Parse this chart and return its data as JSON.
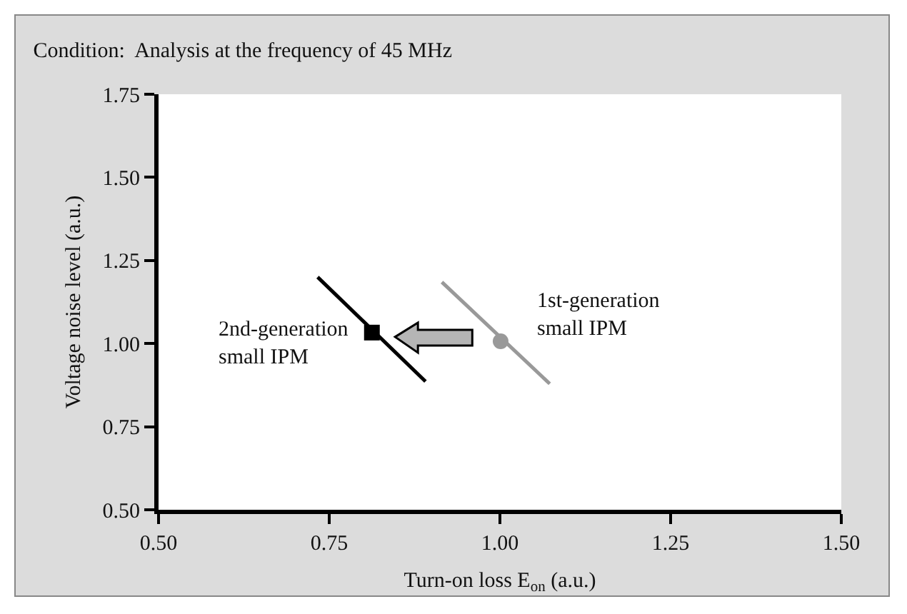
{
  "chart_data": {
    "type": "line",
    "title": "Condition:  Analysis at the frequency of 45 MHz",
    "xlabel": "Turn-on loss E$_{on}$ (a.u.)",
    "ylabel": "Voltage noise level (a.u.)",
    "series": [
      {
        "color": "#000000",
        "marker": "none",
        "x": [
          0.733,
          0.891
        ],
        "values": [
          1.2,
          0.886
        ]
      },
      {
        "color": "#999999",
        "marker": "none",
        "x": [
          0.915,
          1.073
        ],
        "values": [
          1.185,
          0.879
        ]
      },
      {
        "type": "scatter",
        "color": "#000000",
        "marker": "square",
        "x": [
          0.8125
        ],
        "values": [
          1.033
        ]
      },
      {
        "type": "scatter",
        "color": "#999999",
        "marker": "circle",
        "x": [
          1.001
        ],
        "values": [
          1.007
        ]
      }
    ],
    "annotations": [
      {
        "text": "2nd-generation\nsmall IPM",
        "x": 0.8125,
        "y": 1.033
      },
      {
        "text": "1st-generation\nsmall IPM",
        "x": 1.001,
        "y": 1.007
      }
    ],
    "xlim": [
      0.5,
      1.5
    ],
    "xticks": [
      {
        "value": 0.5,
        "label": "0.50"
      },
      {
        "value": 0.75,
        "label": "0.75"
      },
      {
        "value": 1.0,
        "label": "1.00"
      },
      {
        "value": 1.25,
        "label": "1.25"
      },
      {
        "value": 1.5,
        "label": "1.50"
      }
    ],
    "ylim": [
      0.5,
      1.75
    ],
    "yticks": [
      {
        "value": 0.5,
        "label": "0.50"
      },
      {
        "value": 0.75,
        "label": "0.75"
      },
      {
        "value": 1.0,
        "label": "1.00"
      },
      {
        "value": 1.25,
        "label": "1.25"
      },
      {
        "value": 1.5,
        "label": "1.50"
      },
      {
        "value": 1.75,
        "label": "1.75"
      }
    ],
    "grid": false
  }
}
